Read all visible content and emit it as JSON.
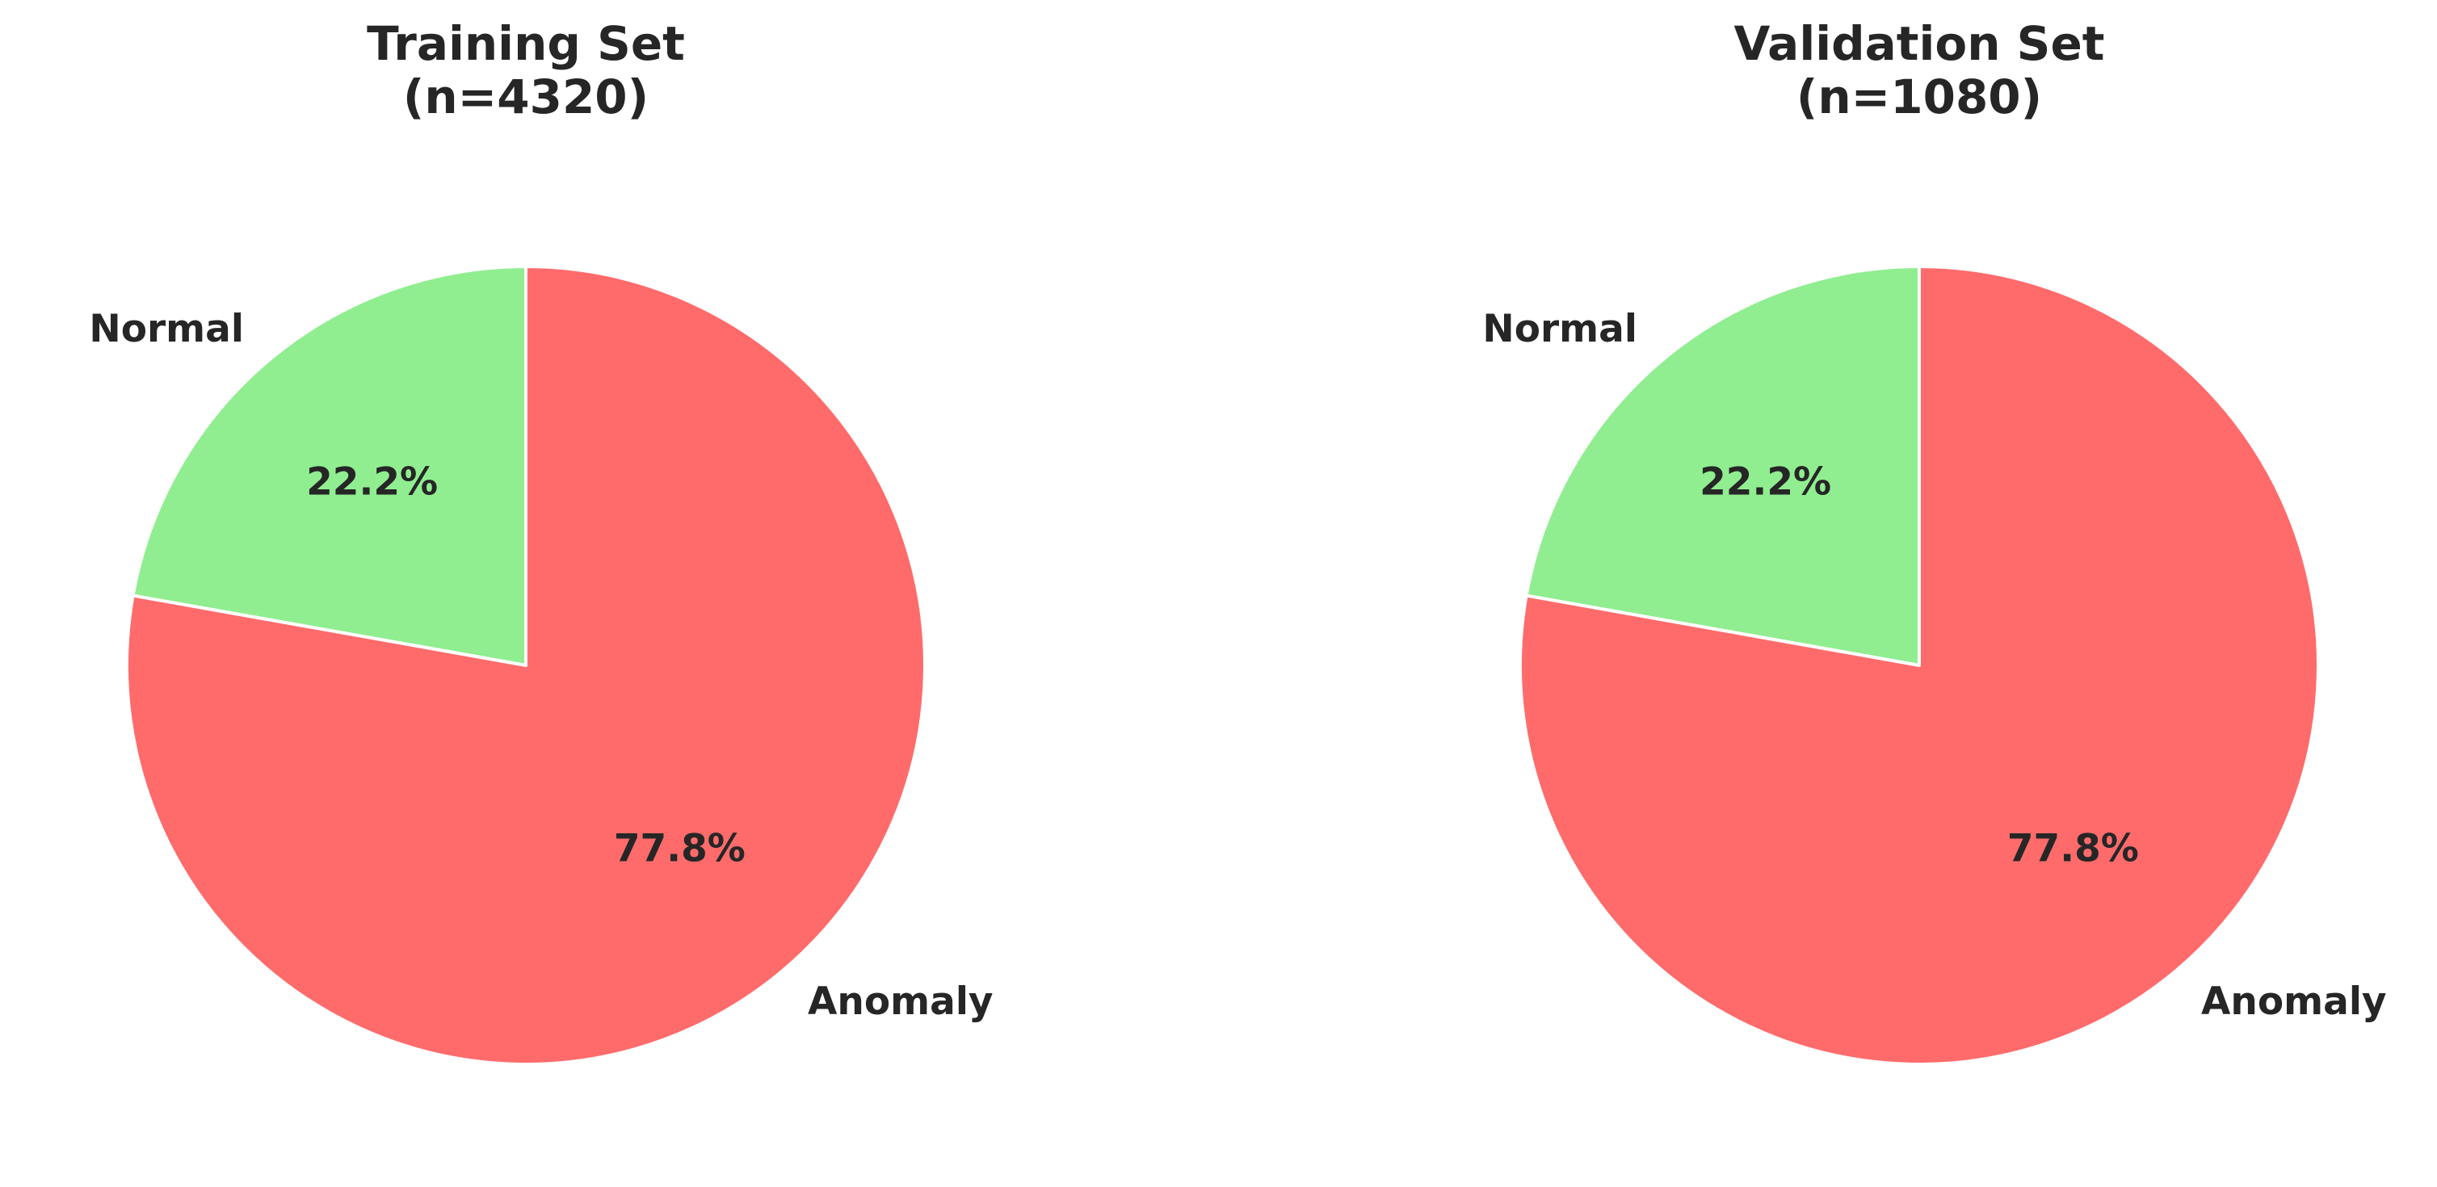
{
  "chart_data": [
    {
      "type": "pie",
      "title_lines": [
        "Training Set",
        "(n=4320)"
      ],
      "categories": [
        "Normal",
        "Anomaly"
      ],
      "values": [
        22.2,
        77.8
      ],
      "value_labels": [
        "22.2%",
        "77.8%"
      ],
      "colors": [
        "#90ee90",
        "#ff6b6b"
      ],
      "start_angle_deg": 90,
      "direction": "counterclockwise",
      "legend": "none"
    },
    {
      "type": "pie",
      "title_lines": [
        "Validation Set",
        "(n=1080)"
      ],
      "categories": [
        "Normal",
        "Anomaly"
      ],
      "values": [
        22.2,
        77.8
      ],
      "value_labels": [
        "22.2%",
        "77.8%"
      ],
      "colors": [
        "#90ee90",
        "#ff6b6b"
      ],
      "start_angle_deg": 90,
      "direction": "counterclockwise",
      "legend": "none"
    }
  ]
}
